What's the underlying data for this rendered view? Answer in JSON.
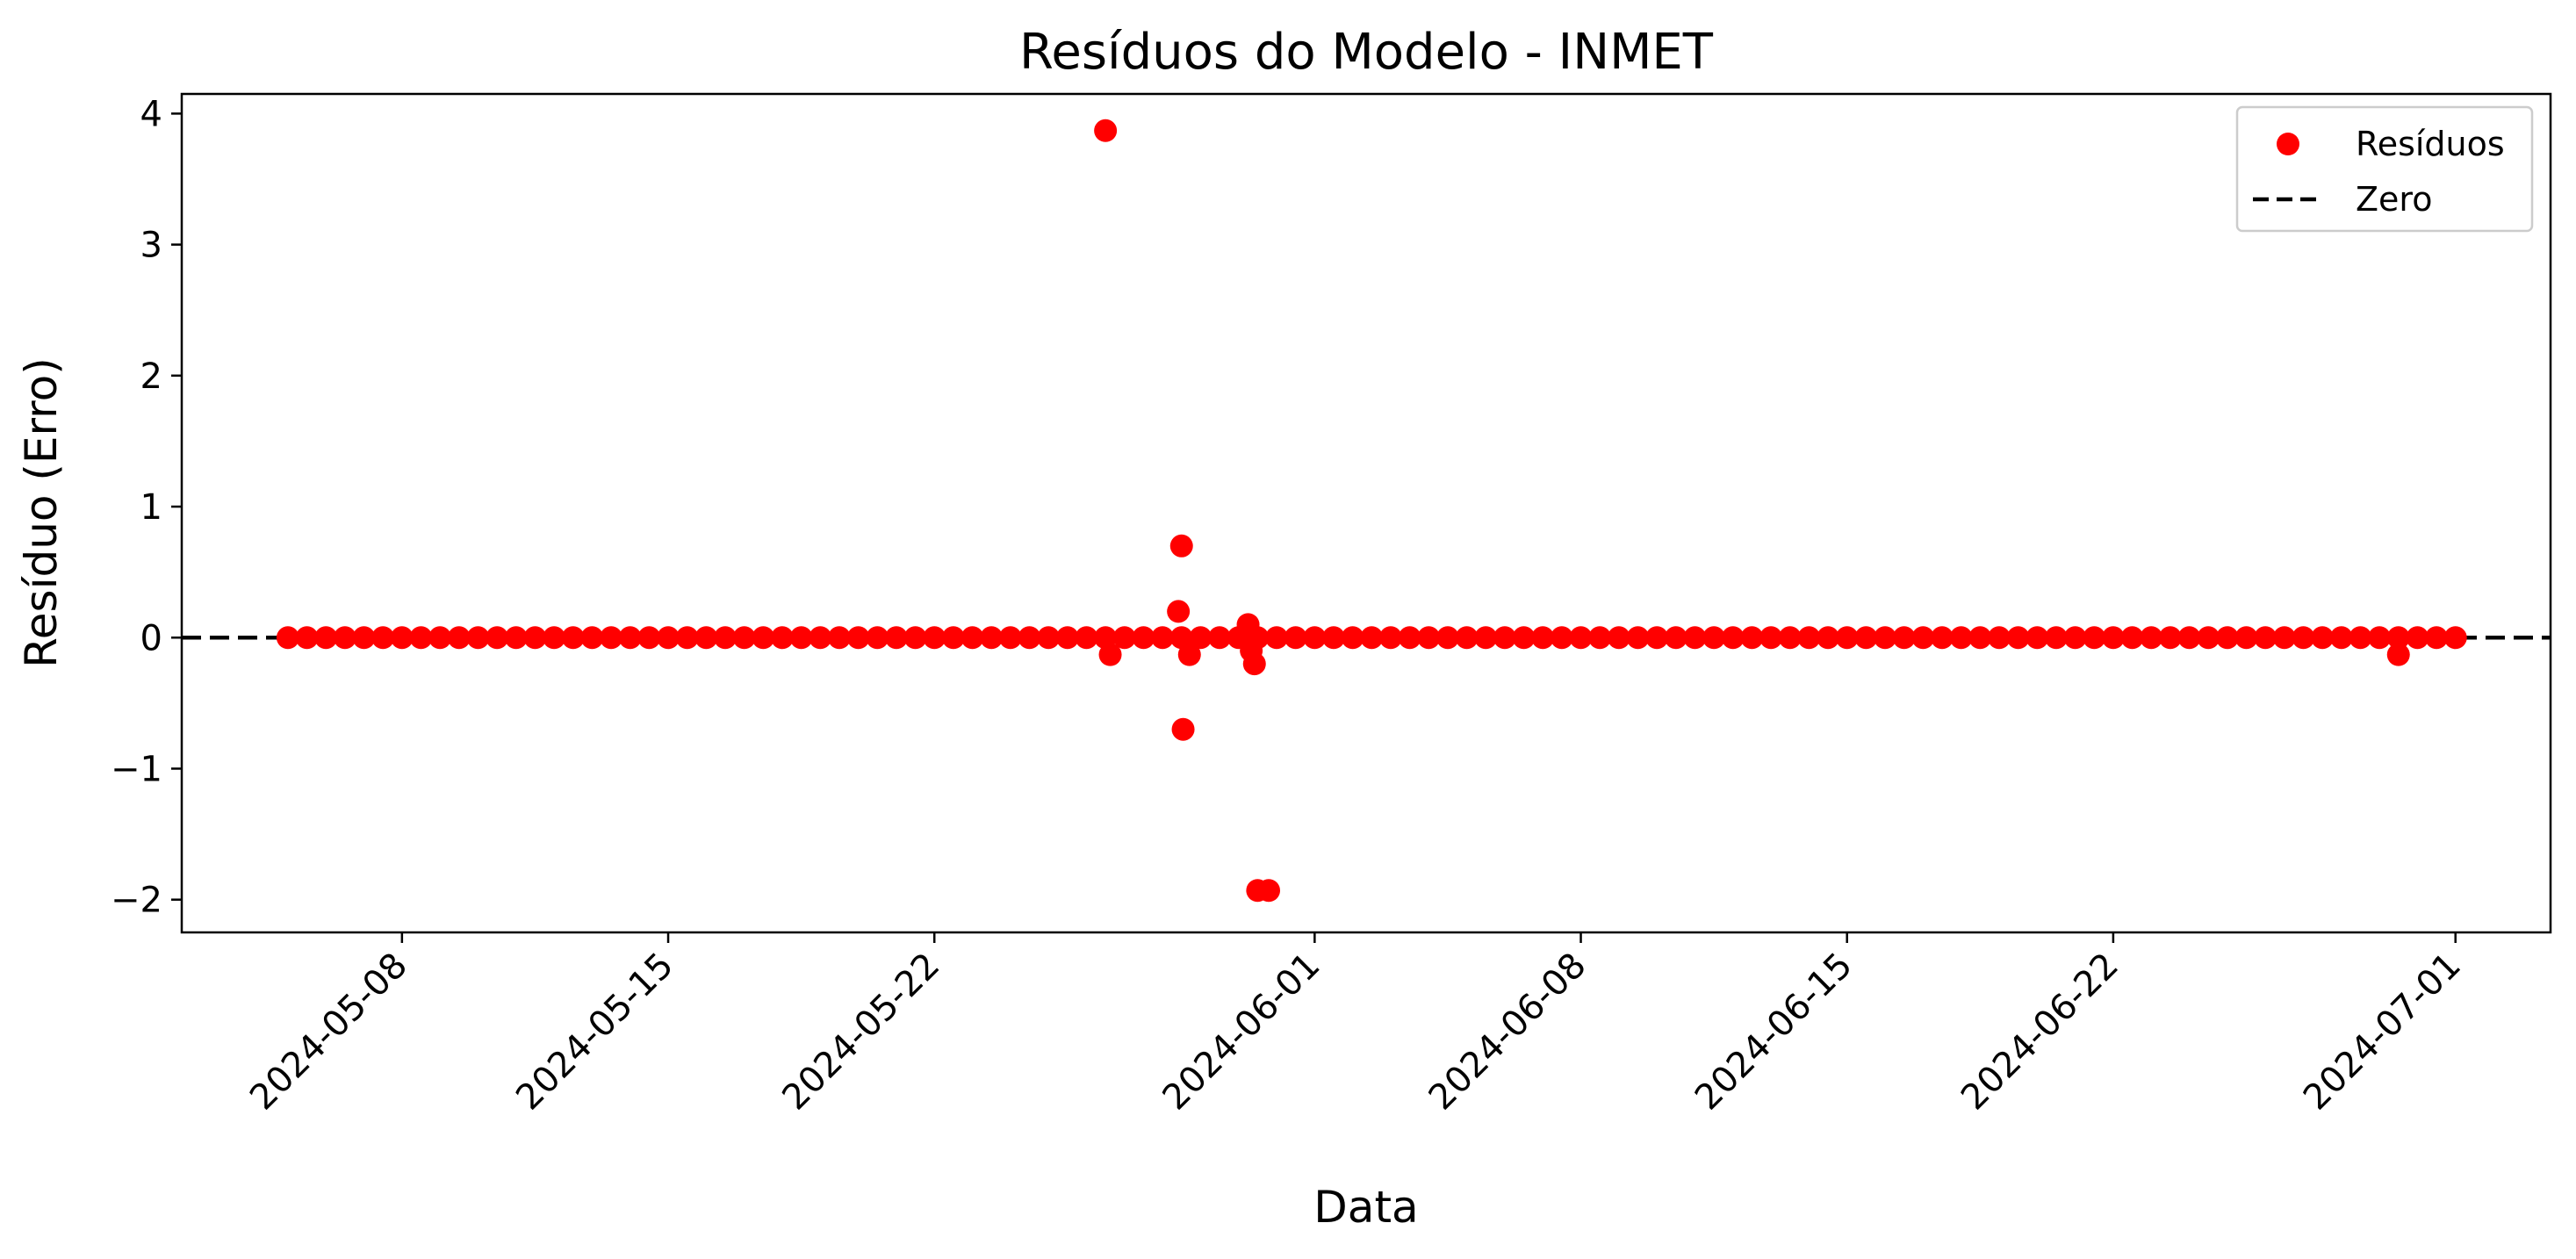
{
  "chart_data": {
    "type": "scatter",
    "title": "Resíduos do Modelo - INMET",
    "xlabel": "Data",
    "ylabel": "Resíduo (Erro)",
    "xlim": [
      "2024-05-02T05:00",
      "2024-07-03T12:00"
    ],
    "ylim": [
      -2.25,
      4.15
    ],
    "x_ticks": [
      "2024-05-08",
      "2024-05-15",
      "2024-05-22",
      "2024-06-01",
      "2024-06-08",
      "2024-06-15",
      "2024-06-22",
      "2024-07-01"
    ],
    "x_tick_labels": [
      "2024-05-08",
      "2024-05-15",
      "2024-05-22",
      "2024-06-01",
      "2024-06-08",
      "2024-06-15",
      "2024-06-22",
      "2024-07-01"
    ],
    "y_ticks": [
      -2,
      -1,
      0,
      1,
      2,
      3,
      4
    ],
    "y_tick_labels": [
      "−2",
      "−1",
      "0",
      "1",
      "2",
      "3",
      "4"
    ],
    "grid": false,
    "legend": {
      "placement": "top-right",
      "entries": [
        "Resíduos",
        "Zero"
      ]
    },
    "reference_line": {
      "name": "Zero",
      "y": 0,
      "style": "dashed",
      "color": "#000000"
    },
    "series": [
      {
        "name": "Resíduos",
        "color": "#ff0000",
        "baseline": {
          "start": "2024-05-05T00:00",
          "end": "2024-07-01T00:00",
          "step_hours": 12,
          "value": 0
        },
        "points": [
          {
            "x": "2024-05-26T12:00",
            "y": 3.87
          },
          {
            "x": "2024-05-26T15:00",
            "y": -0.13
          },
          {
            "x": "2024-05-28T10:00",
            "y": 0.2
          },
          {
            "x": "2024-05-28T12:00",
            "y": 0.7
          },
          {
            "x": "2024-05-28T13:00",
            "y": -0.7
          },
          {
            "x": "2024-05-28T17:00",
            "y": -0.13
          },
          {
            "x": "2024-05-30T06:00",
            "y": 0.1
          },
          {
            "x": "2024-05-30T08:00",
            "y": -0.1
          },
          {
            "x": "2024-05-30T10:00",
            "y": -0.2
          },
          {
            "x": "2024-05-30T12:00",
            "y": -1.93
          },
          {
            "x": "2024-05-30T19:00",
            "y": -1.93
          },
          {
            "x": "2024-06-29T12:00",
            "y": -0.13
          }
        ]
      }
    ]
  }
}
